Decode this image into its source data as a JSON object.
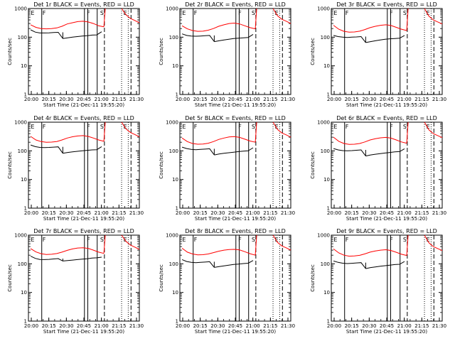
{
  "chart_data": [
    {
      "type": "line",
      "title": "Det 1r BLACK = Events, RED = LLD",
      "xlabel": "Start Time (21-Dec-11 19:55:20)",
      "ylabel": "Counts/sec",
      "yscale": "log",
      "ylim": [
        1,
        1000
      ],
      "yticks": [
        "1",
        "10",
        "100",
        "1000"
      ],
      "xticks": [
        "20:00",
        "20:15",
        "20:30",
        "20:45",
        "21:00",
        "21:15",
        "21:30"
      ],
      "markers": [
        "E",
        "F",
        "F",
        "S",
        "E"
      ],
      "series": [
        {
          "color": "#000000",
          "values": [
            180,
            150,
            140,
            140,
            142,
            145,
            148,
            90,
            95,
            100,
            105,
            110,
            112,
            118,
            120,
            155
          ]
        },
        {
          "color": "#ff0000",
          "values": [
            270,
            220,
            200,
            195,
            200,
            210,
            240,
            290,
            320,
            350,
            360,
            340,
            300,
            250,
            230,
            1000,
            600,
            450,
            380,
            320
          ]
        }
      ]
    },
    {
      "type": "line",
      "title": "Det 2r BLACK = Events, RED = LLD",
      "xlabel": "Start Time (21-Dec-11 19:55:20)",
      "ylabel": "Counts/sec",
      "yscale": "log",
      "ylim": [
        1,
        1000
      ],
      "yticks": [
        "1",
        "10",
        "100",
        "1000"
      ],
      "xticks": [
        "20:00",
        "20:15",
        "20:30",
        "20:45",
        "21:00",
        "21:15",
        "21:30"
      ],
      "markers": [
        "E",
        "F",
        "F",
        "S",
        "E"
      ],
      "series": [
        {
          "color": "#000000",
          "values": [
            130,
            115,
            110,
            108,
            110,
            112,
            115,
            70,
            75,
            80,
            85,
            90,
            92,
            95,
            98,
            125
          ]
        },
        {
          "color": "#ff0000",
          "values": [
            250,
            195,
            170,
            160,
            162,
            175,
            200,
            240,
            270,
            300,
            310,
            290,
            250,
            215,
            195,
            1000,
            560,
            420,
            360,
            300
          ]
        }
      ]
    },
    {
      "type": "line",
      "title": "Det 3r BLACK = Events, RED = LLD",
      "xlabel": "Start Time (21-Dec-11 19:55:20)",
      "ylabel": "Counts/sec",
      "yscale": "log",
      "ylim": [
        1,
        1000
      ],
      "yticks": [
        "1",
        "10",
        "100",
        "1000"
      ],
      "xticks": [
        "20:00",
        "20:15",
        "20:30",
        "20:45",
        "21:00",
        "21:15",
        "21:30"
      ],
      "markers": [
        "E",
        "F",
        "F",
        "S",
        "E"
      ],
      "series": [
        {
          "color": "#000000",
          "values": [
            115,
            105,
            100,
            98,
            100,
            102,
            105,
            65,
            70,
            75,
            80,
            85,
            88,
            90,
            92,
            115
          ]
        },
        {
          "color": "#ff0000",
          "values": [
            260,
            190,
            160,
            150,
            152,
            162,
            185,
            215,
            240,
            260,
            270,
            255,
            220,
            190,
            170,
            1000,
            540,
            400,
            340,
            290
          ]
        }
      ]
    },
    {
      "type": "line",
      "title": "Det 4r BLACK = Events, RED = LLD",
      "xlabel": "Start Time (21-Dec-11 19:55:20)",
      "ylabel": "Counts/sec",
      "yscale": "log",
      "ylim": [
        1,
        1000
      ],
      "yticks": [
        "1",
        "10",
        "100",
        "1000"
      ],
      "xticks": [
        "20:00",
        "20:15",
        "20:30",
        "20:45",
        "21:00",
        "21:15",
        "21:30"
      ],
      "markers": [
        "E",
        "F",
        "F",
        "S",
        "E"
      ],
      "series": [
        {
          "color": "#000000",
          "values": [
            160,
            140,
            132,
            130,
            132,
            135,
            138,
            82,
            88,
            92,
            96,
            100,
            104,
            108,
            110,
            140
          ]
        },
        {
          "color": "#ff0000",
          "values": [
            320,
            240,
            210,
            200,
            202,
            212,
            240,
            280,
            310,
            330,
            340,
            320,
            280,
            240,
            215,
            1000,
            580,
            440,
            370,
            310
          ]
        }
      ]
    },
    {
      "type": "line",
      "title": "Det 5r BLACK = Events, RED = LLD",
      "xlabel": "Start Time (21-Dec-11 19:55:20)",
      "ylabel": "Counts/sec",
      "yscale": "log",
      "ylim": [
        1,
        1000
      ],
      "yticks": [
        "1",
        "10",
        "100",
        "1000"
      ],
      "xticks": [
        "20:00",
        "20:15",
        "20:30",
        "20:45",
        "21:00",
        "21:15",
        "21:30"
      ],
      "markers": [
        "E",
        "F",
        "F",
        "S",
        "E"
      ],
      "series": [
        {
          "color": "#000000",
          "values": [
            135,
            120,
            112,
            110,
            112,
            115,
            118,
            72,
            78,
            82,
            86,
            90,
            94,
            98,
            100,
            128
          ]
        },
        {
          "color": "#ff0000",
          "values": [
            280,
            210,
            180,
            170,
            172,
            185,
            210,
            250,
            280,
            305,
            315,
            295,
            255,
            220,
            200,
            1000,
            560,
            420,
            360,
            300
          ]
        }
      ]
    },
    {
      "type": "line",
      "title": "Det 6r BLACK = Events, RED = LLD",
      "xlabel": "Start Time (21-Dec-11 19:55:20)",
      "ylabel": "Counts/sec",
      "yscale": "log",
      "ylim": [
        1,
        1000
      ],
      "yticks": [
        "1",
        "10",
        "100",
        "1000"
      ],
      "xticks": [
        "20:00",
        "20:15",
        "20:30",
        "20:45",
        "21:00",
        "21:15",
        "21:30"
      ],
      "markers": [
        "E",
        "F",
        "F",
        "S",
        "E"
      ],
      "series": [
        {
          "color": "#000000",
          "values": [
            120,
            108,
            102,
            100,
            102,
            105,
            108,
            66,
            72,
            76,
            80,
            84,
            88,
            92,
            94,
            118
          ]
        },
        {
          "color": "#ff0000",
          "values": [
            300,
            215,
            180,
            168,
            170,
            180,
            205,
            240,
            265,
            285,
            295,
            278,
            240,
            205,
            185,
            1000,
            540,
            400,
            340,
            290
          ]
        }
      ]
    },
    {
      "type": "line",
      "title": "Det 7r BLACK = Events, RED = LLD",
      "xlabel": "Start Time (21-Dec-11 19:55:20)",
      "ylabel": "Counts/sec",
      "yscale": "log",
      "ylim": [
        1,
        1000
      ],
      "yticks": [
        "1",
        "10",
        "100",
        "1000"
      ],
      "xticks": [
        "20:00",
        "20:15",
        "20:30",
        "20:45",
        "21:00",
        "21:15",
        "21:30"
      ],
      "markers": [
        "E",
        "F",
        "F",
        "S",
        "E"
      ],
      "series": [
        {
          "color": "#000000",
          "values": [
            185,
            155,
            142,
            140,
            143,
            148,
            152,
            125,
            130,
            135,
            140,
            145,
            150,
            158,
            162,
            170
          ]
        },
        {
          "color": "#ff0000",
          "values": [
            340,
            260,
            225,
            212,
            215,
            228,
            255,
            295,
            330,
            355,
            365,
            345,
            300,
            255,
            230,
            1000,
            600,
            450,
            380,
            320
          ]
        }
      ]
    },
    {
      "type": "line",
      "title": "Det 8r BLACK = Events, RED = LLD",
      "xlabel": "Start Time (21-Dec-11 19:55:20)",
      "ylabel": "Counts/sec",
      "yscale": "log",
      "ylim": [
        1,
        1000
      ],
      "yticks": [
        "1",
        "10",
        "100",
        "1000"
      ],
      "xticks": [
        "20:00",
        "20:15",
        "20:30",
        "20:45",
        "21:00",
        "21:15",
        "21:30"
      ],
      "markers": [
        "E",
        "F",
        "F",
        "S",
        "E"
      ],
      "series": [
        {
          "color": "#000000",
          "values": [
            140,
            120,
            112,
            110,
            112,
            115,
            118,
            75,
            80,
            85,
            90,
            95,
            98,
            102,
            105,
            130
          ]
        },
        {
          "color": "#ff0000",
          "values": [
            350,
            255,
            220,
            205,
            208,
            220,
            245,
            275,
            300,
            315,
            320,
            305,
            265,
            225,
            200,
            1000,
            560,
            420,
            360,
            300
          ]
        }
      ]
    },
    {
      "type": "line",
      "title": "Det 9r BLACK = Events, RED = LLD",
      "xlabel": "Start Time (21-Dec-11 19:55:20)",
      "ylabel": "Counts/sec",
      "yscale": "log",
      "ylim": [
        1,
        1000
      ],
      "yticks": [
        "1",
        "10",
        "100",
        "1000"
      ],
      "xticks": [
        "20:00",
        "20:15",
        "20:30",
        "20:45",
        "21:00",
        "21:15",
        "21:30"
      ],
      "markers": [
        "E",
        "F",
        "F",
        "S",
        "E"
      ],
      "series": [
        {
          "color": "#000000",
          "values": [
            125,
            112,
            105,
            102,
            104,
            107,
            110,
            68,
            74,
            78,
            82,
            86,
            90,
            94,
            96,
            120
          ]
        },
        {
          "color": "#ff0000",
          "values": [
            330,
            240,
            200,
            185,
            188,
            198,
            222,
            255,
            280,
            300,
            310,
            292,
            252,
            215,
            195,
            1000,
            540,
            400,
            340,
            290
          ]
        }
      ]
    }
  ]
}
